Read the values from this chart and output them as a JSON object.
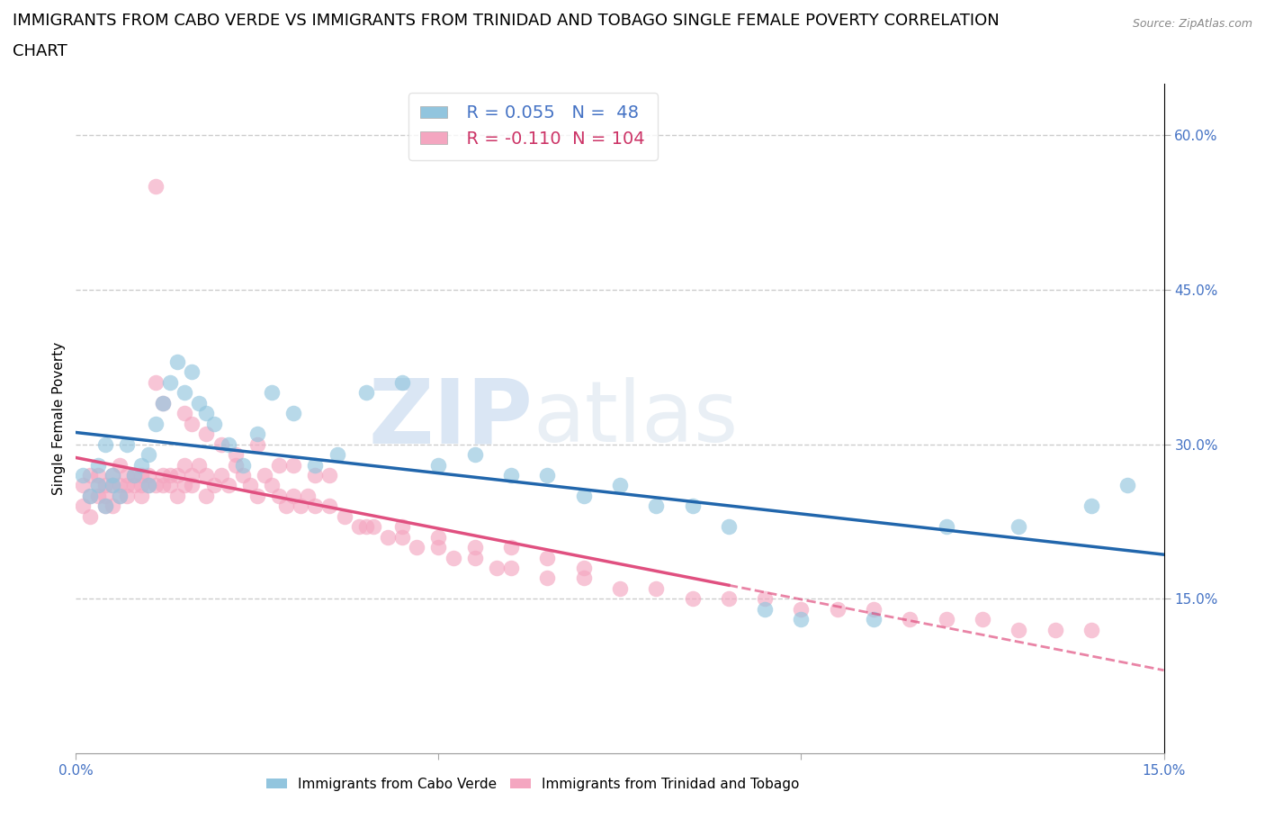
{
  "title_line1": "IMMIGRANTS FROM CABO VERDE VS IMMIGRANTS FROM TRINIDAD AND TOBAGO SINGLE FEMALE POVERTY CORRELATION",
  "title_line2": "CHART",
  "source": "Source: ZipAtlas.com",
  "ylabel": "Single Female Poverty",
  "legend_label1": "Immigrants from Cabo Verde",
  "legend_label2": "Immigrants from Trinidad and Tobago",
  "R1": 0.055,
  "N1": 48,
  "R2": -0.11,
  "N2": 104,
  "color1": "#92c5de",
  "color2": "#f4a6c0",
  "trendline1_color": "#2166ac",
  "trendline2_color": "#e05080",
  "background_color": "#ffffff",
  "grid_color": "#cccccc",
  "xlim": [
    0.0,
    0.15
  ],
  "ylim": [
    0.0,
    0.65
  ],
  "ytick_positions": [
    0.15,
    0.3,
    0.45,
    0.6
  ],
  "xtick_positions": [
    0.0,
    0.05,
    0.1,
    0.15
  ],
  "ytick_labels": [
    "15.0%",
    "30.0%",
    "45.0%",
    "60.0%"
  ],
  "xtick_labels": [
    "0.0%",
    "",
    "",
    "15.0%"
  ],
  "title_fontsize": 13,
  "axis_label_fontsize": 11,
  "tick_fontsize": 11,
  "legend_fontsize": 13,
  "cabo_verde_x": [
    0.001,
    0.002,
    0.003,
    0.003,
    0.004,
    0.004,
    0.005,
    0.005,
    0.006,
    0.007,
    0.008,
    0.009,
    0.01,
    0.01,
    0.011,
    0.012,
    0.013,
    0.014,
    0.015,
    0.016,
    0.017,
    0.018,
    0.019,
    0.021,
    0.023,
    0.025,
    0.027,
    0.03,
    0.033,
    0.036,
    0.04,
    0.045,
    0.05,
    0.055,
    0.06,
    0.065,
    0.07,
    0.075,
    0.08,
    0.085,
    0.09,
    0.095,
    0.1,
    0.11,
    0.12,
    0.13,
    0.14,
    0.145
  ],
  "cabo_verde_y": [
    0.27,
    0.25,
    0.28,
    0.26,
    0.3,
    0.24,
    0.27,
    0.26,
    0.25,
    0.3,
    0.27,
    0.28,
    0.26,
    0.29,
    0.32,
    0.34,
    0.36,
    0.38,
    0.35,
    0.37,
    0.34,
    0.33,
    0.32,
    0.3,
    0.28,
    0.31,
    0.35,
    0.33,
    0.28,
    0.29,
    0.35,
    0.36,
    0.28,
    0.29,
    0.27,
    0.27,
    0.25,
    0.26,
    0.24,
    0.24,
    0.22,
    0.14,
    0.13,
    0.13,
    0.22,
    0.22,
    0.24,
    0.26
  ],
  "trinidad_x": [
    0.001,
    0.001,
    0.002,
    0.002,
    0.002,
    0.003,
    0.003,
    0.003,
    0.004,
    0.004,
    0.004,
    0.005,
    0.005,
    0.005,
    0.006,
    0.006,
    0.006,
    0.007,
    0.007,
    0.007,
    0.008,
    0.008,
    0.009,
    0.009,
    0.009,
    0.01,
    0.01,
    0.011,
    0.011,
    0.012,
    0.012,
    0.013,
    0.013,
    0.014,
    0.014,
    0.015,
    0.015,
    0.016,
    0.016,
    0.017,
    0.018,
    0.018,
    0.019,
    0.02,
    0.021,
    0.022,
    0.023,
    0.024,
    0.025,
    0.026,
    0.027,
    0.028,
    0.029,
    0.03,
    0.031,
    0.032,
    0.033,
    0.035,
    0.037,
    0.039,
    0.041,
    0.043,
    0.045,
    0.047,
    0.05,
    0.052,
    0.055,
    0.058,
    0.06,
    0.065,
    0.07,
    0.075,
    0.08,
    0.085,
    0.09,
    0.095,
    0.1,
    0.105,
    0.11,
    0.115,
    0.12,
    0.125,
    0.13,
    0.135,
    0.14,
    0.011,
    0.012,
    0.015,
    0.016,
    0.018,
    0.02,
    0.022,
    0.025,
    0.028,
    0.03,
    0.033,
    0.035,
    0.04,
    0.045,
    0.05,
    0.055,
    0.06,
    0.065,
    0.07
  ],
  "trinidad_y": [
    0.26,
    0.24,
    0.25,
    0.27,
    0.23,
    0.26,
    0.25,
    0.27,
    0.24,
    0.26,
    0.25,
    0.27,
    0.24,
    0.26,
    0.28,
    0.26,
    0.25,
    0.27,
    0.25,
    0.26,
    0.27,
    0.26,
    0.27,
    0.26,
    0.25,
    0.27,
    0.26,
    0.55,
    0.26,
    0.27,
    0.26,
    0.27,
    0.26,
    0.27,
    0.25,
    0.28,
    0.26,
    0.27,
    0.26,
    0.28,
    0.27,
    0.25,
    0.26,
    0.27,
    0.26,
    0.28,
    0.27,
    0.26,
    0.25,
    0.27,
    0.26,
    0.25,
    0.24,
    0.25,
    0.24,
    0.25,
    0.24,
    0.24,
    0.23,
    0.22,
    0.22,
    0.21,
    0.21,
    0.2,
    0.2,
    0.19,
    0.19,
    0.18,
    0.18,
    0.17,
    0.17,
    0.16,
    0.16,
    0.15,
    0.15,
    0.15,
    0.14,
    0.14,
    0.14,
    0.13,
    0.13,
    0.13,
    0.12,
    0.12,
    0.12,
    0.36,
    0.34,
    0.33,
    0.32,
    0.31,
    0.3,
    0.29,
    0.3,
    0.28,
    0.28,
    0.27,
    0.27,
    0.22,
    0.22,
    0.21,
    0.2,
    0.2,
    0.19,
    0.18
  ]
}
